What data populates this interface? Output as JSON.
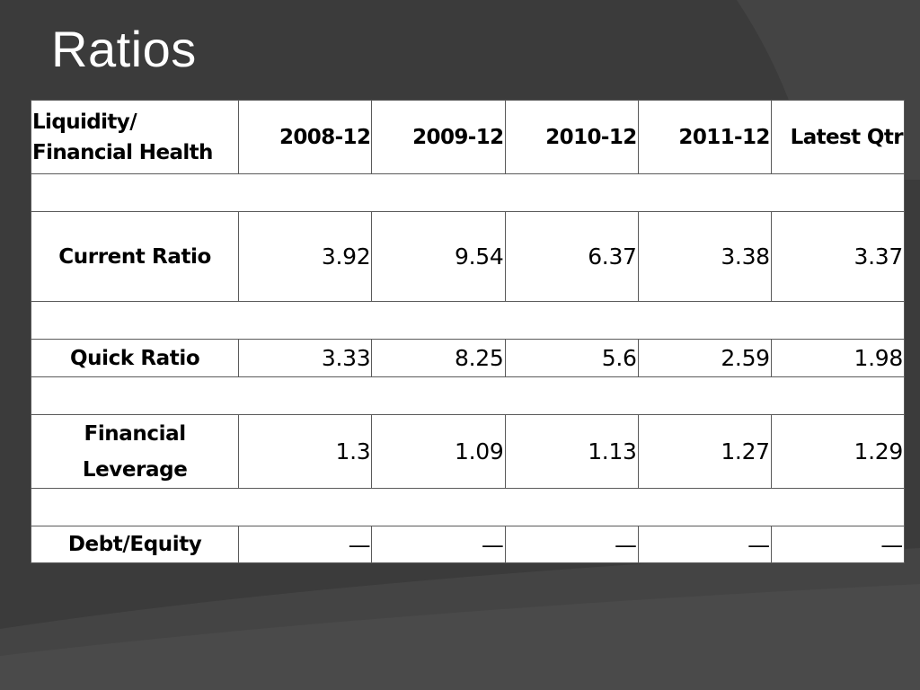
{
  "slide": {
    "title": "Ratios"
  },
  "colors": {
    "background": "#3b3b3b",
    "background_swoosh": "#2e2e2e",
    "title_text": "#ffffff",
    "table_fill": "#ffffff",
    "table_border": "#5a5a5a"
  },
  "table": {
    "header": {
      "label_line1": "Liquidity/",
      "label_line2": "Financial Health",
      "columns": [
        "2008-12",
        "2009-12",
        "2010-12",
        "2011-12",
        "Latest Qtr"
      ]
    },
    "rows": [
      {
        "label": "Current Ratio",
        "values": [
          "3.92",
          "9.54",
          "6.37",
          "3.38",
          "3.37"
        ]
      },
      {
        "label": "Quick Ratio",
        "values": [
          "3.33",
          "8.25",
          "5.6",
          "2.59",
          "1.98"
        ]
      },
      {
        "label_line1": "Financial",
        "label_line2": "Leverage",
        "values": [
          "1.3",
          "1.09",
          "1.13",
          "1.27",
          "1.29"
        ]
      },
      {
        "label": "Debt/Equity",
        "values": [
          "—",
          "—",
          "—",
          "—",
          "—"
        ]
      }
    ]
  }
}
